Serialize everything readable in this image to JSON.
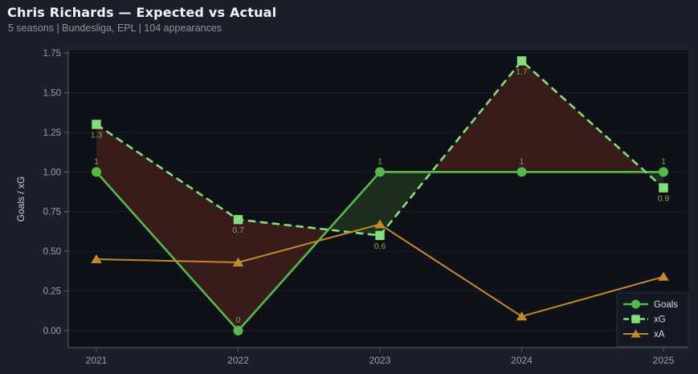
{
  "header": {
    "title": "Chris Richards — Expected vs Actual",
    "subtitle": "5 seasons | Bundesliga, EPL | 104 appearances"
  },
  "chart_data": {
    "type": "line",
    "title": "Chris Richards — Expected vs Actual",
    "ylabel": "Goals / xG",
    "xlabel": "",
    "categories": [
      "2021",
      "2022",
      "2023",
      "2024",
      "2025"
    ],
    "ylim": [
      0,
      1.75
    ],
    "ytick_labels": [
      "0.00",
      "0.25",
      "0.50",
      "0.75",
      "1.00",
      "1.25",
      "1.50",
      "1.75"
    ],
    "grid": "horizontal",
    "legend_position": "lower-right",
    "series": [
      {
        "name": "Goals",
        "values": [
          1,
          0,
          1,
          1,
          1
        ],
        "point_labels": [
          "1",
          "0",
          "1",
          "1",
          "1"
        ],
        "label_side": "above",
        "marker": "circle",
        "line_style": "solid",
        "color": "#57b94c",
        "label_color": "#74ab4e"
      },
      {
        "name": "xG",
        "values": [
          1.3,
          0.7,
          0.6,
          1.7,
          0.9
        ],
        "point_labels": [
          "1.3",
          "0.7",
          "0.6",
          "1.7",
          "0.9"
        ],
        "label_side": "below",
        "marker": "square",
        "line_style": "dashed",
        "color": "#86de7b",
        "label_color": "#85a857"
      },
      {
        "name": "xA",
        "values": [
          0.45,
          0.43,
          0.67,
          0.09,
          0.34
        ],
        "point_labels": null,
        "label_side": "none",
        "marker": "triangle",
        "line_style": "solid",
        "color": "#c3892e",
        "label_color": "#c3892e"
      }
    ],
    "fills": [
      {
        "higher": "xG",
        "lower": "Goals",
        "color": "#371c1a",
        "meaning": "xG exceeds Goals"
      },
      {
        "higher": "Goals",
        "lower": "xG",
        "color": "#1d2e1e",
        "meaning": "Goals exceed xG"
      }
    ]
  },
  "legend": {
    "entries": [
      {
        "label": "Goals"
      },
      {
        "label": "xG"
      },
      {
        "label": "xA"
      }
    ]
  },
  "theme": {
    "page_bg": "#1a1f2a",
    "plot_bg": "#0e1218",
    "grid_color": "#181e28",
    "axis_color": "#565d69",
    "tick_label_color": "#9aa0ab",
    "title_color": "#f2f4f7",
    "subtitle_color": "#8d93a0",
    "axis_label_color": "#ccd0d6",
    "legend_text_color": "#d6d9de",
    "legend_bg": "#131823",
    "legend_border": "#2b3240"
  }
}
